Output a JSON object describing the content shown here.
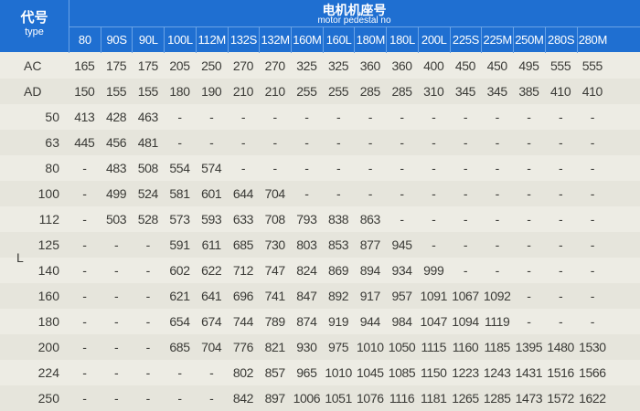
{
  "header": {
    "type_zh": "代号",
    "type_en": "type",
    "title_zh": "电机机座号",
    "title_en": "motor pedestal no",
    "columns": [
      "80",
      "90S",
      "90L",
      "100L",
      "112M",
      "132S",
      "132M",
      "160M",
      "160L",
      "180M",
      "180L",
      "200L",
      "225S",
      "225M",
      "250M",
      "280S",
      "280M"
    ]
  },
  "colors": {
    "header_bg": "#1f6fd1",
    "page_bg": "#edece4"
  },
  "rows": [
    {
      "label": "AC",
      "values": [
        "165",
        "175",
        "175",
        "205",
        "250",
        "270",
        "270",
        "325",
        "325",
        "360",
        "360",
        "400",
        "450",
        "450",
        "495",
        "555",
        "555"
      ]
    },
    {
      "label": "AD",
      "values": [
        "150",
        "155",
        "155",
        "180",
        "190",
        "210",
        "210",
        "255",
        "255",
        "285",
        "285",
        "310",
        "345",
        "345",
        "385",
        "410",
        "410"
      ]
    }
  ],
  "l_label": "L",
  "l_rows": [
    {
      "label": "50",
      "values": [
        "413",
        "428",
        "463",
        "-",
        "-",
        "-",
        "-",
        "-",
        "-",
        "-",
        "-",
        "-",
        "-",
        "-",
        "-",
        "-",
        "-"
      ]
    },
    {
      "label": "63",
      "values": [
        "445",
        "456",
        "481",
        "-",
        "-",
        "-",
        "-",
        "-",
        "-",
        "-",
        "-",
        "-",
        "-",
        "-",
        "-",
        "-",
        "-"
      ]
    },
    {
      "label": "80",
      "values": [
        "-",
        "483",
        "508",
        "554",
        "574",
        "-",
        "-",
        "-",
        "-",
        "-",
        "-",
        "-",
        "-",
        "-",
        "-",
        "-",
        "-"
      ]
    },
    {
      "label": "100",
      "values": [
        "-",
        "499",
        "524",
        "581",
        "601",
        "644",
        "704",
        "-",
        "-",
        "-",
        "-",
        "-",
        "-",
        "-",
        "-",
        "-",
        "-"
      ]
    },
    {
      "label": "112",
      "values": [
        "-",
        "503",
        "528",
        "573",
        "593",
        "633",
        "708",
        "793",
        "838",
        "863",
        "-",
        "-",
        "-",
        "-",
        "-",
        "-",
        "-"
      ]
    },
    {
      "label": "125",
      "values": [
        "-",
        "-",
        "-",
        "591",
        "611",
        "685",
        "730",
        "803",
        "853",
        "877",
        "945",
        "-",
        "-",
        "-",
        "-",
        "-",
        "-"
      ]
    },
    {
      "label": "140",
      "values": [
        "-",
        "-",
        "-",
        "602",
        "622",
        "712",
        "747",
        "824",
        "869",
        "894",
        "934",
        "999",
        "-",
        "-",
        "-",
        "-",
        "-"
      ]
    },
    {
      "label": "160",
      "values": [
        "-",
        "-",
        "-",
        "621",
        "641",
        "696",
        "741",
        "847",
        "892",
        "917",
        "957",
        "1091",
        "1067",
        "1092",
        "-",
        "-",
        "-"
      ]
    },
    {
      "label": "180",
      "values": [
        "-",
        "-",
        "-",
        "654",
        "674",
        "744",
        "789",
        "874",
        "919",
        "944",
        "984",
        "1047",
        "1094",
        "1119",
        "-",
        "-",
        "-"
      ]
    },
    {
      "label": "200",
      "values": [
        "-",
        "-",
        "-",
        "685",
        "704",
        "776",
        "821",
        "930",
        "975",
        "1010",
        "1050",
        "1115",
        "1160",
        "1185",
        "1395",
        "1480",
        "1530"
      ]
    },
    {
      "label": "224",
      "values": [
        "-",
        "-",
        "-",
        "-",
        "-",
        "802",
        "857",
        "965",
        "1010",
        "1045",
        "1085",
        "1150",
        "1223",
        "1243",
        "1431",
        "1516",
        "1566"
      ]
    },
    {
      "label": "250",
      "values": [
        "-",
        "-",
        "-",
        "-",
        "-",
        "842",
        "897",
        "1006",
        "1051",
        "1076",
        "1116",
        "1181",
        "1265",
        "1285",
        "1473",
        "1572",
        "1622"
      ]
    }
  ]
}
